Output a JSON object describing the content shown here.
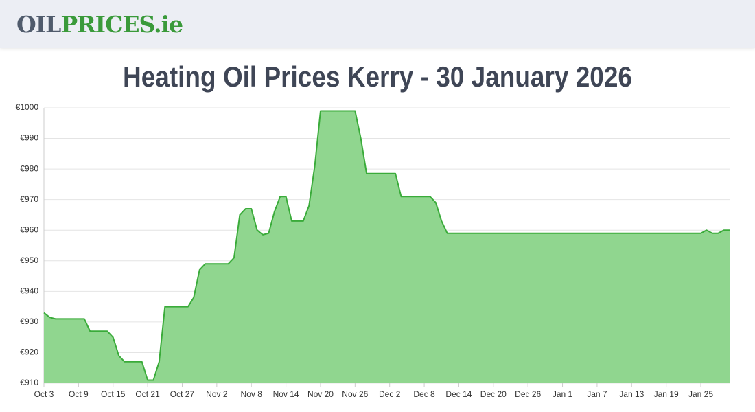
{
  "header": {
    "logo_part1": "OIL",
    "logo_part2": "PRICES.ie"
  },
  "chart_data": {
    "type": "area",
    "title": "Heating Oil Prices Kerry - 30 January 2026",
    "categories": [
      "Oct 3",
      null,
      null,
      null,
      null,
      null,
      "Oct 9",
      null,
      null,
      null,
      null,
      null,
      "Oct 15",
      null,
      null,
      null,
      null,
      null,
      "Oct 21",
      null,
      null,
      null,
      null,
      null,
      "Oct 27",
      null,
      null,
      null,
      null,
      null,
      "Nov 2",
      null,
      null,
      null,
      null,
      null,
      "Nov 8",
      null,
      null,
      null,
      null,
      null,
      "Nov 14",
      null,
      null,
      null,
      null,
      null,
      "Nov 20",
      null,
      null,
      null,
      null,
      null,
      "Nov 26",
      null,
      null,
      null,
      null,
      null,
      "Dec 2",
      null,
      null,
      null,
      null,
      null,
      "Dec 8",
      null,
      null,
      null,
      null,
      null,
      "Dec 14",
      null,
      null,
      null,
      null,
      null,
      "Dec 20",
      null,
      null,
      null,
      null,
      null,
      "Dec 26",
      null,
      null,
      null,
      null,
      null,
      "Jan 1",
      null,
      null,
      null,
      null,
      null,
      "Jan 7",
      null,
      null,
      null,
      null,
      null,
      "Jan 13",
      null,
      null,
      null,
      null,
      null,
      "Jan 19",
      null,
      null,
      null,
      null,
      null,
      "Jan 25",
      null,
      null,
      null,
      null,
      null
    ],
    "values": [
      933,
      931.5,
      931,
      931,
      931,
      931,
      931,
      931,
      927,
      927,
      927,
      927,
      925,
      919,
      917,
      917,
      917,
      917,
      911,
      911,
      917,
      935,
      935,
      935,
      935,
      935,
      938,
      947,
      949,
      949,
      949,
      949,
      949,
      951,
      965,
      967,
      967,
      960,
      958.5,
      959,
      966,
      971,
      971,
      963,
      963,
      963,
      968,
      981,
      999,
      999,
      999,
      999,
      999,
      999,
      999,
      990,
      978.5,
      978.5,
      978.5,
      978.5,
      978.5,
      978.5,
      971,
      971,
      971,
      971,
      971,
      971,
      969,
      963,
      959,
      959,
      959,
      959,
      959,
      959,
      959,
      959,
      959,
      959,
      959,
      959,
      959,
      959,
      959,
      959,
      959,
      959,
      959,
      959,
      959,
      959,
      959,
      959,
      959,
      959,
      959,
      959,
      959,
      959,
      959,
      959,
      959,
      959,
      959,
      959,
      959,
      959,
      959,
      959,
      959,
      959,
      959,
      959,
      959,
      960,
      959,
      959,
      960,
      960
    ],
    "color": "#3aab3a",
    "fill": "#90d68f",
    "ylim": [
      910,
      1000
    ],
    "yticks": [
      {
        "value": 910,
        "label": "€910"
      },
      {
        "value": 920,
        "label": "€920"
      },
      {
        "value": 930,
        "label": "€930"
      },
      {
        "value": 940,
        "label": "€940"
      },
      {
        "value": 950,
        "label": "€950"
      },
      {
        "value": 960,
        "label": "€960"
      },
      {
        "value": 970,
        "label": "€970"
      },
      {
        "value": 980,
        "label": "€980"
      },
      {
        "value": 990,
        "label": "€990"
      },
      {
        "value": 1000,
        "label": "€1000"
      }
    ],
    "grid": true
  }
}
